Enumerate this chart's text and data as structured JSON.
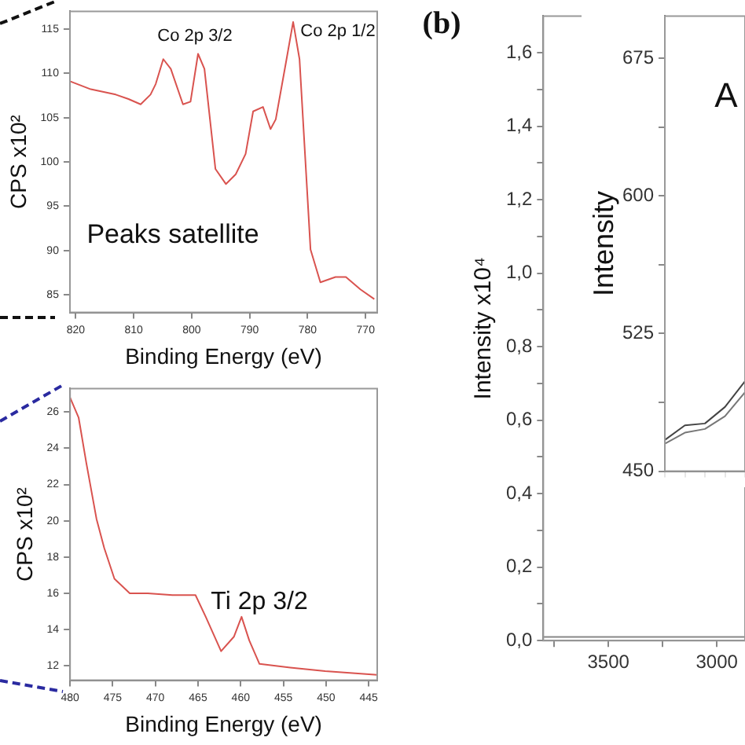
{
  "chart_data": [
    {
      "type": "line",
      "xlabel": "Binding Energy (eV)",
      "ylabel": "CPS x10²",
      "xlim": [
        821,
        768
      ],
      "xticks": [
        820,
        810,
        800,
        790,
        780,
        770
      ],
      "ylim": [
        83,
        117
      ],
      "yticks": [
        85,
        90,
        95,
        100,
        105,
        110,
        115
      ],
      "series": [
        {
          "color": "#d9534f",
          "x": [
            821,
            817.4,
            813.1,
            810.9,
            808.8,
            807.1,
            806.2,
            804.9,
            803.6,
            801.5,
            800.2,
            798.9,
            797.8,
            795.9,
            794.1,
            792.4,
            790.7,
            789.4,
            787.7,
            786.4,
            785.5,
            783.8,
            782.5,
            781.4,
            779.5,
            777.8,
            775.2,
            773.4,
            770.9,
            768.5
          ],
          "values": [
            109.1,
            108.2,
            107.6,
            107.1,
            106.5,
            107.6,
            108.8,
            111.6,
            110.5,
            106.5,
            106.8,
            112.2,
            110.5,
            99.2,
            97.5,
            98.6,
            100.9,
            105.7,
            106.2,
            103.7,
            104.8,
            111.0,
            115.8,
            111.6,
            90.1,
            86.4,
            87.0,
            87.0,
            85.6,
            84.5
          ]
        }
      ],
      "annotations": [
        "Co 2p 3/2",
        "Co 2p 1/2",
        "Peaks satellite"
      ]
    },
    {
      "type": "line",
      "xlabel": "Binding Energy (eV)",
      "ylabel": "CPS x10²",
      "xlim": [
        480,
        444
      ],
      "xticks": [
        480,
        475,
        470,
        465,
        460,
        455,
        450,
        445
      ],
      "ylim": [
        11.2,
        27.3
      ],
      "yticks": [
        12,
        14,
        16,
        18,
        20,
        22,
        24,
        26
      ],
      "series": [
        {
          "color": "#d9534f",
          "x": [
            480,
            479,
            478.1,
            476.9,
            476,
            474.8,
            473,
            470.9,
            468,
            465.3,
            464.1,
            462.3,
            460.8,
            459.9,
            459,
            457.8,
            454.2,
            450.1,
            444
          ],
          "values": [
            26.8,
            25.7,
            23.2,
            20.1,
            18.5,
            16.8,
            16.0,
            16.0,
            15.9,
            15.9,
            14.7,
            12.8,
            13.6,
            14.7,
            13.4,
            12.1,
            11.9,
            11.7,
            11.5
          ]
        }
      ],
      "annotations": [
        "Ti 2p 3/2"
      ]
    },
    {
      "type": "line",
      "ylabel": "Intensity x10⁴",
      "xlim": [
        3800,
        2870
      ],
      "xticks": [
        {
          "value": 3750,
          "label": null
        },
        3500,
        {
          "value": 3250,
          "label": null
        },
        3000
      ],
      "ylim": [
        0,
        1.7
      ],
      "yticks": [
        {
          "value": 0,
          "label": "0,0"
        },
        {
          "value": 0.1,
          "label": null
        },
        {
          "value": 0.2,
          "label": "0,2"
        },
        {
          "value": 0.3,
          "label": null
        },
        {
          "value": 0.4,
          "label": "0,4"
        },
        {
          "value": 0.5,
          "label": null
        },
        {
          "value": 0.6,
          "label": "0,6"
        },
        {
          "value": 0.7,
          "label": null
        },
        {
          "value": 0.8,
          "label": "0,8"
        },
        {
          "value": 0.9,
          "label": null
        },
        {
          "value": 1.0,
          "label": "1,0"
        },
        {
          "value": 1.1,
          "label": null
        },
        {
          "value": 1.2,
          "label": "1,2"
        },
        {
          "value": 1.3,
          "label": null
        },
        {
          "value": 1.4,
          "label": "1,4"
        },
        {
          "value": 1.5,
          "label": null
        },
        {
          "value": 1.6,
          "label": "1,6"
        }
      ],
      "series": [
        {
          "color": "#888888",
          "x": [
            3800,
            2870
          ],
          "values": [
            0.01,
            0.01
          ]
        }
      ],
      "annotations": [
        "(b)"
      ]
    },
    {
      "type": "line",
      "ylabel": "Intensity",
      "categories": [
        null,
        null,
        null,
        null,
        null
      ],
      "ylim": [
        450,
        698
      ],
      "yticks": [
        450,
        {
          "value": 487.5,
          "label": null
        },
        525,
        {
          "value": 562.5,
          "label": null
        },
        600,
        {
          "value": 637.5,
          "label": null
        },
        675
      ],
      "tick_labels": "y",
      "series": [
        {
          "color": "#444444",
          "values": [
            467,
            475,
            476,
            485,
            499
          ]
        },
        {
          "color": "#777777",
          "values": [
            465,
            471,
            473,
            480,
            493
          ]
        }
      ],
      "annotations": [
        "A"
      ]
    }
  ]
}
